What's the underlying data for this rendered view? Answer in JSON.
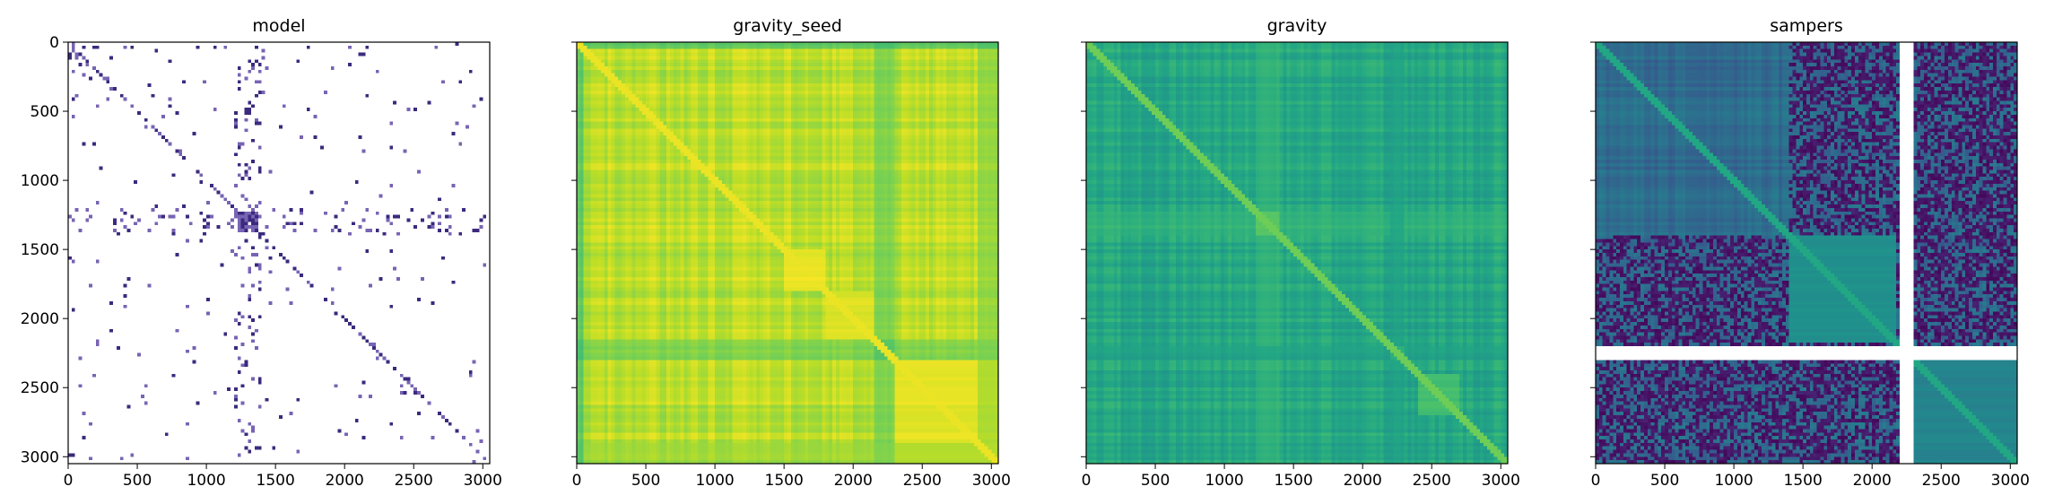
{
  "chart_data": [
    {
      "type": "heatmap",
      "title": "model",
      "colormap": "sparse-purple-on-white",
      "colors": {
        "background": "#ffffff",
        "mark": "#3b2a7e"
      },
      "xlim": [
        0,
        3050
      ],
      "ylim": [
        3050,
        0
      ],
      "xticks": [
        0,
        500,
        1000,
        1500,
        2000,
        2500,
        3000
      ],
      "yticks": [
        0,
        500,
        1000,
        1500,
        2000,
        2500,
        3000
      ],
      "show_yticklabels": true,
      "blocks": [
        {
          "range": [
            0,
            120
          ],
          "density": 0.25
        },
        {
          "range": [
            1230,
            1380
          ],
          "density": 0.85
        },
        {
          "range": [
            1900,
            2000
          ],
          "density": 0.2
        },
        {
          "range": [
            2400,
            2560
          ],
          "density": 0.25
        }
      ],
      "bands": [
        {
          "range": [
            1210,
            1400
          ],
          "density": 0.12
        },
        {
          "range": [
            30,
            60
          ],
          "density": 0.08
        }
      ],
      "background_density": 0.015,
      "grid": false
    },
    {
      "type": "heatmap",
      "title": "gravity_seed",
      "colormap": "viridis",
      "xlim": [
        0,
        3050
      ],
      "ylim": [
        3050,
        0
      ],
      "xticks": [
        0,
        500,
        1000,
        1500,
        2000,
        2500,
        3000
      ],
      "yticks": [
        0,
        500,
        1000,
        1500,
        2000,
        2500,
        3000
      ],
      "show_yticklabels": false,
      "base_level": 0.9,
      "diagonal_level": 0.97,
      "blocks": [
        {
          "range": [
            1500,
            1800
          ],
          "level": 0.97
        },
        {
          "range": [
            1800,
            2150
          ],
          "level": 0.95
        },
        {
          "range": [
            2150,
            2300
          ],
          "level": 0.75
        },
        {
          "range": [
            2300,
            3050
          ],
          "level": 0.96
        }
      ],
      "bands": [
        {
          "range": [
            2150,
            2300
          ],
          "level": 0.72
        },
        {
          "range": [
            2900,
            3050
          ],
          "level": 0.8
        },
        {
          "range": [
            0,
            40
          ],
          "level": 0.6
        }
      ],
      "grid": false
    },
    {
      "type": "heatmap",
      "title": "gravity",
      "colormap": "viridis",
      "xlim": [
        0,
        3050
      ],
      "ylim": [
        3050,
        0
      ],
      "xticks": [
        0,
        500,
        1000,
        1500,
        2000,
        2500,
        3000
      ],
      "yticks": [
        0,
        500,
        1000,
        1500,
        2000,
        2500,
        3000
      ],
      "show_yticklabels": false,
      "base_level": 0.6,
      "diagonal_level": 0.78,
      "blocks": [
        {
          "range": [
            1230,
            1400
          ],
          "level": 0.78
        },
        {
          "range": [
            2200,
            2300
          ],
          "level": 0.72
        },
        {
          "range": [
            2400,
            2700
          ],
          "level": 0.7
        }
      ],
      "bands": [
        {
          "range": [
            1230,
            1400
          ],
          "level": 0.7
        },
        {
          "range": [
            2200,
            2300
          ],
          "level": 0.55
        }
      ],
      "grid": false
    },
    {
      "type": "heatmap",
      "title": "sampers",
      "colormap": "viridis",
      "xlim": [
        0,
        3050
      ],
      "ylim": [
        3050,
        0
      ],
      "xticks": [
        0,
        500,
        1000,
        1500,
        2000,
        2500,
        3000
      ],
      "yticks": [
        0,
        500,
        1000,
        1500,
        2000,
        2500,
        3000
      ],
      "show_yticklabels": false,
      "base_level": 0.35,
      "diagonal_level": 0.6,
      "blocks": [
        {
          "range": [
            1400,
            2170
          ],
          "level": 0.5
        },
        {
          "range": [
            2170,
            2300
          ],
          "level": 0.55
        },
        {
          "range": [
            2300,
            3050
          ],
          "level": 0.45
        }
      ],
      "missing": [
        {
          "axis": "both",
          "range": [
            2200,
            2300
          ]
        }
      ],
      "dark_region_start": 1400,
      "grid": false
    }
  ]
}
